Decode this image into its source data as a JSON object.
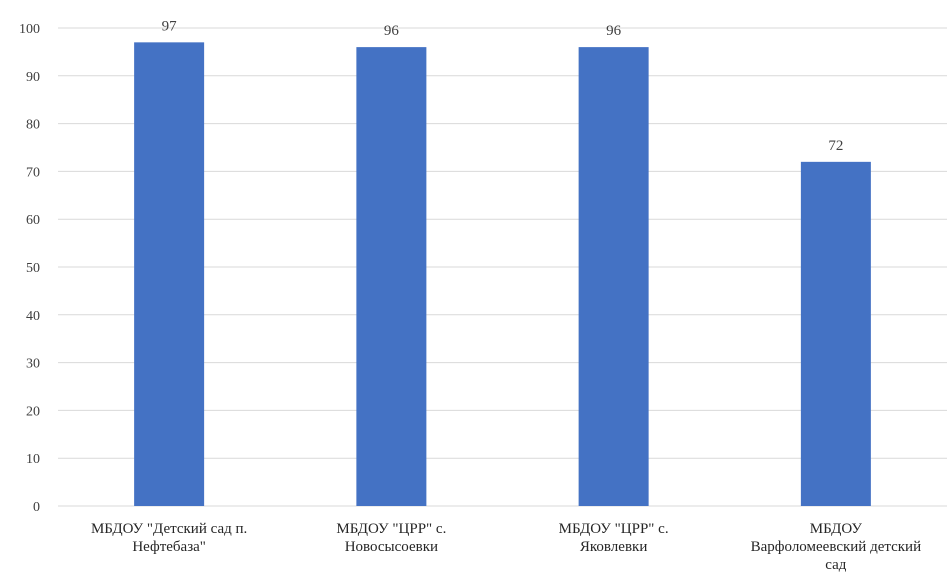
{
  "chart_data": {
    "type": "bar",
    "title": "",
    "xlabel": "",
    "ylabel": "",
    "categories": [
      [
        "МБДОУ \"Детский сад п.",
        "Нефтебаза\""
      ],
      [
        "МБДОУ \"ЦРР\" с.",
        "Новосысоевки"
      ],
      [
        "МБДОУ \"ЦРР\" с.",
        "Яковлевки"
      ],
      [
        "МБДОУ",
        "Варфоломеевский детский",
        "сад"
      ]
    ],
    "values": [
      97,
      96,
      96,
      72
    ],
    "data_labels": [
      "97",
      "96",
      "96",
      "72"
    ],
    "ylim": [
      0,
      100
    ],
    "yticks": [
      0,
      10,
      20,
      30,
      40,
      50,
      60,
      70,
      80,
      90,
      100
    ],
    "grid": true,
    "legend": "none",
    "colors": {
      "bar": "#4472C4",
      "grid": "#D9D9D9",
      "axis": "#D9D9D9"
    }
  }
}
